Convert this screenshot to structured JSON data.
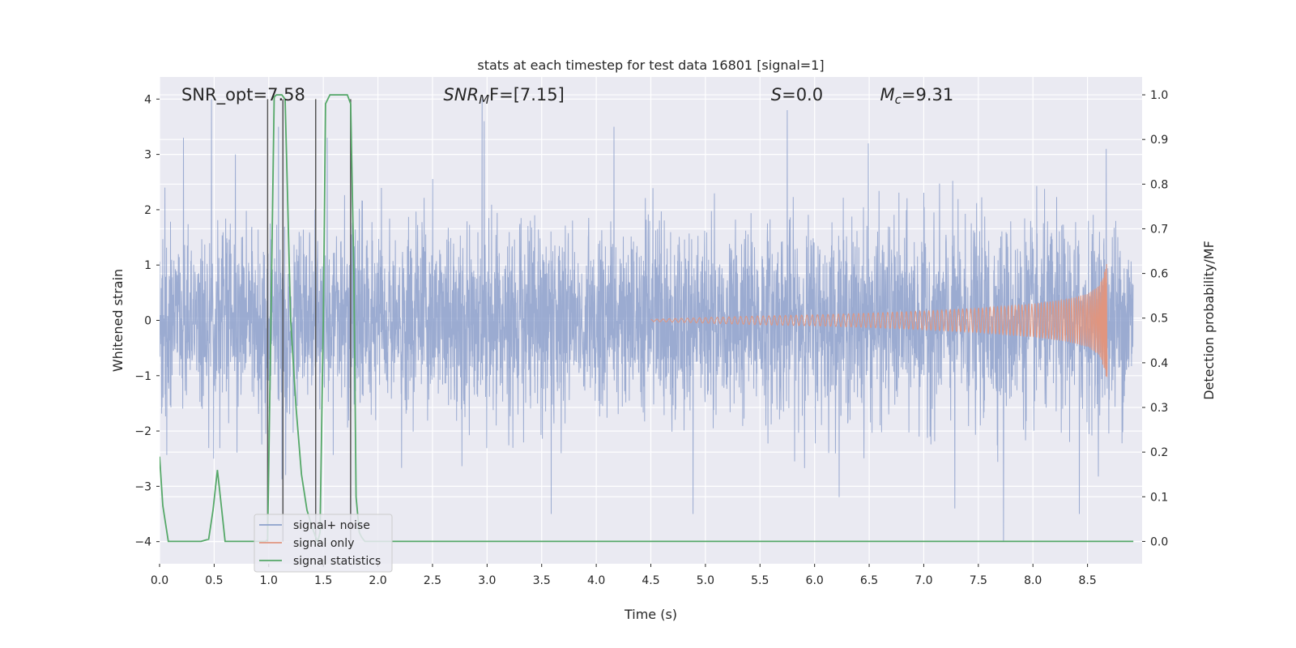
{
  "chart_data": {
    "type": "line",
    "title": "stats at each timestep for test data 16801 [signal=1]",
    "xlabel": "Time (s)",
    "ylabel": "Whitened strain",
    "y2label": "Detection probability/MF",
    "xlim": [
      0,
      9.0
    ],
    "ylim": [
      -4.4,
      4.4
    ],
    "y2lim": [
      -0.05,
      1.04
    ],
    "xticks": [
      0.0,
      0.5,
      1.0,
      1.5,
      2.0,
      2.5,
      3.0,
      3.5,
      4.0,
      4.5,
      5.0,
      5.5,
      6.0,
      6.5,
      7.0,
      7.5,
      8.0,
      8.5
    ],
    "xtick_labels": [
      "0.0",
      "0.5",
      "1.0",
      "1.5",
      "2.0",
      "2.5",
      "3.0",
      "3.5",
      "4.0",
      "4.5",
      "5.0",
      "5.5",
      "6.0",
      "6.5",
      "7.0",
      "7.5",
      "8.0",
      "8.5"
    ],
    "yticks": [
      -4,
      -3,
      -2,
      -1,
      0,
      1,
      2,
      3,
      4
    ],
    "ytick_labels": [
      "−4",
      "−3",
      "−2",
      "−1",
      "0",
      "1",
      "2",
      "3",
      "4"
    ],
    "y2ticks": [
      0.0,
      0.1,
      0.2,
      0.3,
      0.4,
      0.5,
      0.6,
      0.7,
      0.8,
      0.9,
      1.0
    ],
    "y2tick_labels": [
      "0.0",
      "0.1",
      "0.2",
      "0.3",
      "0.4",
      "0.5",
      "0.6",
      "0.7",
      "0.8",
      "0.9",
      "1.0"
    ],
    "grid": true,
    "legend_position": "lower-left",
    "annotations": [
      {
        "id": "snr-opt",
        "text": "SNR_opt=7.58",
        "x": 0.2
      },
      {
        "id": "snr-mf",
        "text": "SNR",
        "sub": "M",
        "rest": "F=[7.15]",
        "x": 2.6
      },
      {
        "id": "s-value",
        "text": "S",
        "rest": "=0.0",
        "x": 5.6
      },
      {
        "id": "chirp-mass",
        "text": "M",
        "sub": "c",
        "rest": "=9.31",
        "x": 6.6
      }
    ],
    "series": [
      {
        "name": "signal+ noise",
        "color": "#8da0cb",
        "axis": "left",
        "description": "whitened strain noise, roughly Gaussian, peaks near ±4",
        "peaks_x": [
          0.05,
          0.22,
          0.48,
          0.5,
          0.7,
          1.1,
          1.55,
          2.98,
          3.0,
          3.62,
          4.2,
          4.93,
          5.8,
          6.55,
          7.35,
          7.8,
          8.5,
          8.75
        ],
        "peaks_y": [
          2.4,
          3.3,
          4.0,
          -2.5,
          3.0,
          3.5,
          3.3,
          4.0,
          3.6,
          -3.5,
          3.5,
          -3.5,
          3.8,
          3.2,
          -3.4,
          -4.0,
          -3.5,
          3.1
        ]
      },
      {
        "name": "signal only",
        "color": "#e0957f",
        "axis": "left",
        "description": "chirp signal growing in amplitude, ending at merger",
        "x": [
          4.5,
          5.0,
          5.5,
          6.0,
          6.5,
          7.0,
          7.5,
          8.0,
          8.3,
          8.5,
          8.6,
          8.65,
          8.68
        ],
        "envelope": [
          0.02,
          0.05,
          0.08,
          0.1,
          0.13,
          0.17,
          0.22,
          0.3,
          0.38,
          0.48,
          0.62,
          0.85,
          1.1
        ]
      },
      {
        "name": "signal statistics",
        "color": "#55a868",
        "axis": "right",
        "x": [
          0.0,
          0.03,
          0.08,
          0.2,
          0.3,
          0.38,
          0.45,
          0.49,
          0.53,
          0.57,
          0.6,
          0.7,
          0.9,
          0.97,
          0.99,
          1.02,
          1.05,
          1.07,
          1.1,
          1.12,
          1.15,
          1.18,
          1.2,
          1.25,
          1.3,
          1.35,
          1.4,
          1.43,
          1.45,
          1.47,
          1.5,
          1.52,
          1.56,
          1.62,
          1.68,
          1.72,
          1.75,
          1.78,
          1.8,
          1.83,
          1.85,
          1.88,
          1.95,
          2.0,
          2.5,
          3.0,
          4.0,
          5.0,
          6.0,
          7.0,
          8.0,
          8.92
        ],
        "y": [
          0.19,
          0.08,
          0.0,
          0.0,
          0.0,
          0.0,
          0.005,
          0.07,
          0.16,
          0.07,
          0.0,
          0.0,
          0.0,
          0.0,
          0.004,
          0.5,
          0.995,
          1.0,
          1.0,
          1.0,
          0.99,
          0.7,
          0.5,
          0.3,
          0.15,
          0.07,
          0.03,
          0.01,
          0.0,
          0.02,
          0.5,
          0.98,
          1.0,
          1.0,
          1.0,
          1.0,
          0.98,
          0.6,
          0.1,
          0.02,
          0.01,
          0.0,
          0.0,
          0.0,
          0.0,
          0.0,
          0.0,
          0.0,
          0.0,
          0.0,
          0.0,
          0.0
        ]
      }
    ],
    "vertical_markers": [
      {
        "x": 0.99,
        "ylim": [
          -4.0,
          4.0
        ],
        "color": "#555555"
      },
      {
        "x": 1.13,
        "ylim": [
          -4.0,
          4.0
        ],
        "color": "#555555"
      },
      {
        "x": 1.43,
        "ylim": [
          -4.0,
          4.0
        ],
        "color": "#555555"
      },
      {
        "x": 1.75,
        "ylim": [
          -4.0,
          4.0
        ],
        "color": "#555555"
      }
    ],
    "colors": {
      "plot_background": "#eaeaf2",
      "grid": "#ffffff",
      "text": "#262626",
      "legend_background": "#eaeaf2",
      "legend_border": "#cccccc"
    }
  }
}
